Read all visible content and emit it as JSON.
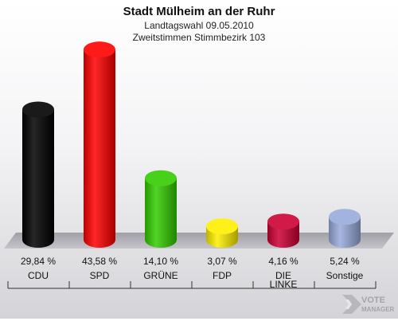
{
  "chart_data": {
    "type": "bar",
    "title": "Stadt Mülheim an der Ruhr",
    "subtitle_1": "Landtagswahl 09.05.2010",
    "subtitle_2": "Zweitstimmen Stimmbezirk 103",
    "categories": [
      "CDU",
      "SPD",
      "GRÜNE",
      "FDP",
      "DIE LINKE",
      "Sonstige"
    ],
    "category_lines": [
      [
        "CDU"
      ],
      [
        "SPD"
      ],
      [
        "GRÜNE"
      ],
      [
        "FDP"
      ],
      [
        "DIE",
        "LINKE"
      ],
      [
        "Sonstige"
      ]
    ],
    "values": [
      29.84,
      43.58,
      14.1,
      3.07,
      4.16,
      5.24
    ],
    "value_labels": [
      "29,84 %",
      "43,58 %",
      "14,10 %",
      "3,07 %",
      "4,16 %",
      "5,24 %"
    ],
    "colors": [
      "#000000",
      "#ff0000",
      "#33cc00",
      "#ffee00",
      "#cc0033",
      "#99aadd"
    ],
    "ylim": [
      0,
      45
    ],
    "xlabel": "",
    "ylabel": "",
    "grid": false,
    "legend": "none"
  },
  "watermark": {
    "line1": "VOTE",
    "line2": "MANAGER",
    "icon": "vote-manager-logo-icon"
  }
}
